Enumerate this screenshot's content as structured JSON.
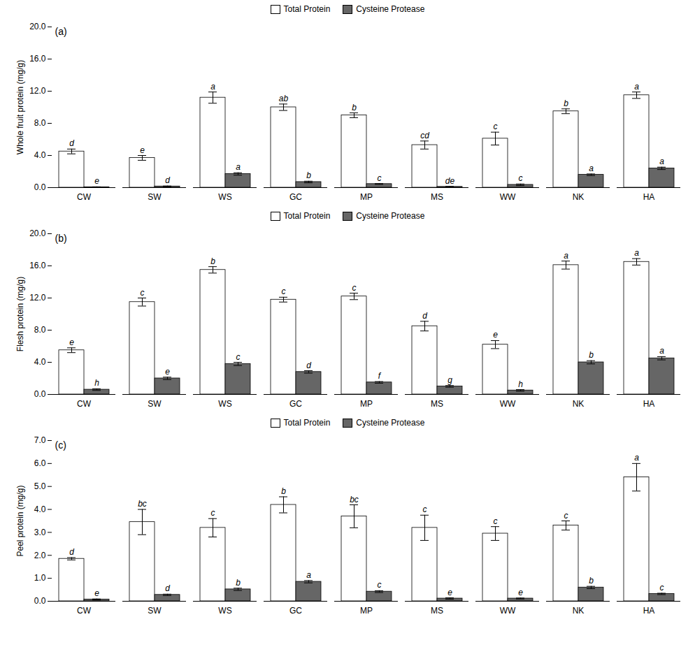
{
  "chart_data": [
    {
      "type": "bar",
      "annotation": "(a)",
      "ylabel": "Whole fruit protein (mg/g)",
      "categories": [
        "CW",
        "SW",
        "WS",
        "GC",
        "MP",
        "MS",
        "WW",
        "NK",
        "HA"
      ],
      "ylim": [
        0,
        20.0
      ],
      "yticks": [
        {
          "value": 0.0,
          "label": "0.0"
        },
        {
          "value": 4.0,
          "label": "4.0"
        },
        {
          "value": 8.0,
          "label": "8.0"
        },
        {
          "value": 12.0,
          "label": "12.0"
        },
        {
          "value": 16.0,
          "label": "16.0"
        },
        {
          "value": 20.0,
          "label": "20.0"
        }
      ],
      "grid": false,
      "legend": "top",
      "series": [
        {
          "name": "Total Protein",
          "color": "white",
          "values": [
            4.5,
            3.7,
            11.2,
            10.0,
            9.0,
            5.3,
            6.1,
            9.5,
            11.5
          ],
          "errors": [
            0.3,
            0.3,
            0.7,
            0.4,
            0.3,
            0.5,
            0.8,
            0.3,
            0.4
          ],
          "letters": [
            "d",
            "e",
            "a",
            "ab",
            "b",
            "cd",
            "c",
            "b",
            "a"
          ]
        },
        {
          "name": "Cysteine Protease",
          "color": "#666666",
          "values": [
            0.05,
            0.15,
            1.7,
            0.7,
            0.45,
            0.1,
            0.35,
            1.6,
            2.4
          ],
          "errors": [
            0.05,
            0.05,
            0.15,
            0.1,
            0.05,
            0.05,
            0.1,
            0.1,
            0.15
          ],
          "letters": [
            "e",
            "d",
            "a",
            "b",
            "c",
            "de",
            "c",
            "a",
            "a"
          ]
        }
      ]
    },
    {
      "type": "bar",
      "annotation": "(b)",
      "ylabel": "Flesh protein (mg/g)",
      "categories": [
        "CW",
        "SW",
        "WS",
        "GC",
        "MP",
        "MS",
        "WW",
        "NK",
        "HA"
      ],
      "ylim": [
        0,
        20.0
      ],
      "yticks": [
        {
          "value": 0.0,
          "label": "0.0"
        },
        {
          "value": 4.0,
          "label": "4.0"
        },
        {
          "value": 8.0,
          "label": "8.0"
        },
        {
          "value": 12.0,
          "label": "12.0"
        },
        {
          "value": 16.0,
          "label": "16.0"
        },
        {
          "value": 20.0,
          "label": "20.0"
        }
      ],
      "grid": false,
      "legend": "top",
      "series": [
        {
          "name": "Total Protein",
          "color": "white",
          "values": [
            5.5,
            11.5,
            15.5,
            11.8,
            12.2,
            8.5,
            6.2,
            16.1,
            16.5
          ],
          "errors": [
            0.3,
            0.5,
            0.4,
            0.3,
            0.4,
            0.6,
            0.5,
            0.5,
            0.4
          ],
          "letters": [
            "e",
            "c",
            "b",
            "c",
            "c",
            "d",
            "e",
            "a",
            "a"
          ]
        },
        {
          "name": "Cysteine Protease",
          "color": "#666666",
          "values": [
            0.6,
            2.0,
            3.8,
            2.8,
            1.5,
            1.0,
            0.5,
            4.0,
            4.5
          ],
          "errors": [
            0.1,
            0.15,
            0.2,
            0.15,
            0.1,
            0.1,
            0.1,
            0.2,
            0.2
          ],
          "letters": [
            "h",
            "e",
            "c",
            "d",
            "f",
            "g",
            "h",
            "b",
            "a"
          ]
        }
      ]
    },
    {
      "type": "bar",
      "annotation": "(c)",
      "ylabel": "Peel protein (mg/g)",
      "categories": [
        "CW",
        "SW",
        "WS",
        "GC",
        "MP",
        "MS",
        "WW",
        "NK",
        "HA"
      ],
      "ylim": [
        0,
        7.0
      ],
      "yticks": [
        {
          "value": 0.0,
          "label": "0.0"
        },
        {
          "value": 1.0,
          "label": "1.0"
        },
        {
          "value": 2.0,
          "label": "2.0"
        },
        {
          "value": 3.0,
          "label": "3.0"
        },
        {
          "value": 4.0,
          "label": "4.0"
        },
        {
          "value": 5.0,
          "label": "5.0"
        },
        {
          "value": 6.0,
          "label": "6.0"
        },
        {
          "value": 7.0,
          "label": "7.0"
        }
      ],
      "grid": false,
      "legend": "top",
      "series": [
        {
          "name": "Total Protein",
          "color": "white",
          "values": [
            1.85,
            3.45,
            3.2,
            4.2,
            3.7,
            3.2,
            2.95,
            3.3,
            5.4
          ],
          "errors": [
            0.05,
            0.55,
            0.4,
            0.35,
            0.5,
            0.55,
            0.3,
            0.2,
            0.6
          ],
          "letters": [
            "d",
            "bc",
            "c",
            "b",
            "bc",
            "c",
            "c",
            "c",
            "a"
          ]
        },
        {
          "name": "Cysteine Protease",
          "color": "#666666",
          "values": [
            0.08,
            0.28,
            0.52,
            0.85,
            0.42,
            0.12,
            0.12,
            0.6,
            0.32
          ],
          "errors": [
            0.02,
            0.03,
            0.05,
            0.05,
            0.04,
            0.03,
            0.02,
            0.05,
            0.03
          ],
          "letters": [
            "e",
            "d",
            "b",
            "a",
            "c",
            "e",
            "e",
            "b",
            "c"
          ]
        }
      ]
    }
  ]
}
